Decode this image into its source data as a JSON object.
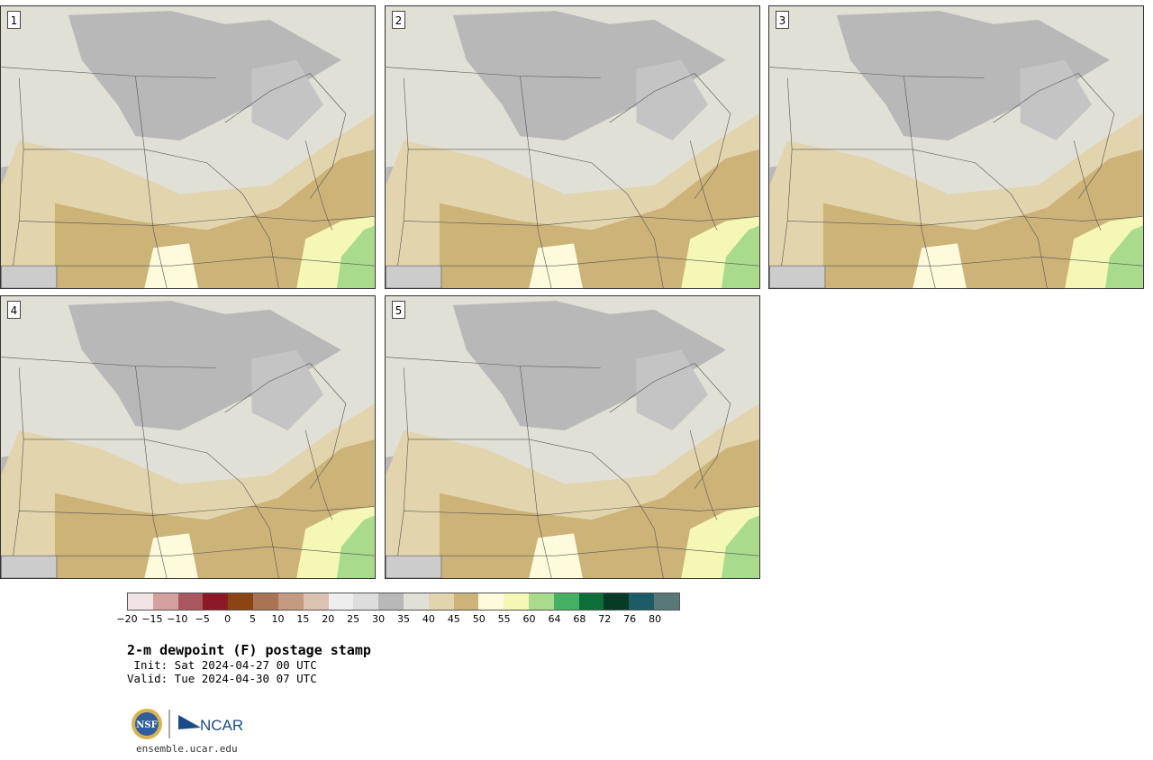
{
  "panels": [
    {
      "label": "1"
    },
    {
      "label": "2"
    },
    {
      "label": "3"
    },
    {
      "label": "4"
    },
    {
      "label": "5"
    }
  ],
  "legend": {
    "colors": [
      "#f2e4e4",
      "#d4a0a0",
      "#a8585e",
      "#8b1a24",
      "#8b4513",
      "#a87454",
      "#c49a80",
      "#dcc2b0",
      "#eeeeee",
      "#dddddd",
      "#b8b8b8",
      "#e0e0d6",
      "#e2d4ac",
      "#ccb478",
      "#fdfbdc",
      "#f5f7b4",
      "#a8dc8c",
      "#44b064",
      "#0e6e3a",
      "#063a24",
      "#1c5c66",
      "#58787a"
    ],
    "ticks": [
      "−20",
      "−15",
      "−10",
      "−5",
      "0",
      "5",
      "10",
      "15",
      "20",
      "25",
      "30",
      "35",
      "40",
      "45",
      "50",
      "55",
      "60",
      "64",
      "68",
      "72",
      "76",
      "80"
    ]
  },
  "title": "2-m dewpoint (F) postage stamp",
  "init": " Init: Sat 2024-04-27 00 UTC",
  "valid": "Valid: Tue 2024-04-30 07 UTC",
  "logos": {
    "nsf": "NSF",
    "ncar": "NCAR"
  },
  "site": "ensemble.ucar.edu"
}
